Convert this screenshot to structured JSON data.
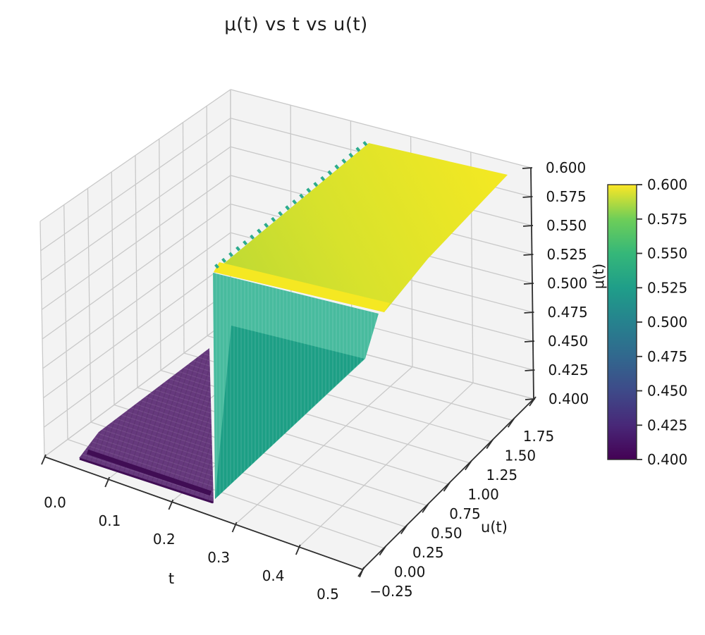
{
  "title": "μ(t) vs t vs u(t)",
  "chart_data": {
    "type": "surface",
    "title": "μ(t) vs t vs u(t)",
    "x_axis": {
      "label": "t",
      "ticks": [
        "0.0",
        "0.1",
        "0.2",
        "0.3",
        "0.4",
        "0.5"
      ],
      "range": [
        0.0,
        0.5
      ]
    },
    "y_axis": {
      "label": "u(t)",
      "ticks": [
        "−0.25",
        "0.00",
        "0.25",
        "0.50",
        "0.75",
        "1.00",
        "1.25",
        "1.50",
        "1.75"
      ],
      "range": [
        -0.25,
        1.75
      ]
    },
    "z_axis": {
      "label": "μ(t)",
      "ticks": [
        "0.400",
        "0.425",
        "0.450",
        "0.475",
        "0.500",
        "0.525",
        "0.550",
        "0.575",
        "0.600"
      ],
      "range": [
        0.4,
        0.6
      ]
    },
    "grid": true,
    "surface": {
      "description": "Step surface: μ(t) = 0.4 (dark purple plane) before the step and μ(t) = 0.6 (yellow plane) after it, joined by a vertical teal wall at the jump (t ≈ 0.25).",
      "low_value": 0.4,
      "high_value": 0.6,
      "step_at_t": 0.25,
      "colormap": "viridis"
    },
    "colorbar": {
      "ticks_bottom_to_top": [
        "0.400",
        "0.425",
        "0.450",
        "0.475",
        "0.500",
        "0.525",
        "0.550",
        "0.575",
        "0.600"
      ],
      "colormap_stops": [
        {
          "pos": 0.0,
          "color": "#440154"
        },
        {
          "pos": 0.125,
          "color": "#482878"
        },
        {
          "pos": 0.25,
          "color": "#3e4a89"
        },
        {
          "pos": 0.375,
          "color": "#31688e"
        },
        {
          "pos": 0.5,
          "color": "#26828e"
        },
        {
          "pos": 0.625,
          "color": "#1f9e89"
        },
        {
          "pos": 0.75,
          "color": "#35b779"
        },
        {
          "pos": 0.875,
          "color": "#6ece58"
        },
        {
          "pos": 1.0,
          "color": "#fde725"
        }
      ]
    },
    "colors": {
      "pane": "#f3f3f3",
      "grid": "#c9c9c9",
      "axis": "#2e2e2e",
      "text": "#141414",
      "surface_low": "#66397d",
      "surface_low_stripe": "#400d54",
      "wall_light": "#48bb9e",
      "wall_dark": "#1d9f85",
      "wall_teeth": "#2dab8d",
      "ledge": "#f5e822",
      "plane_start": "#bcd934",
      "plane_end": "#f2e823"
    },
    "surface_polygons": [
      {
        "name": "surface-low-plane",
        "kind": "poly",
        "fill": "surface_low",
        "points": [
          [
            112,
            650
          ],
          [
            303,
            714
          ],
          [
            297,
            494
          ],
          [
            140,
            613
          ]
        ]
      },
      {
        "name": "surface-low-plane-texture",
        "kind": "poly",
        "fill": "@purpleTex",
        "points": [
          [
            112,
            650
          ],
          [
            303,
            714
          ],
          [
            297,
            494
          ],
          [
            140,
            613
          ]
        ]
      },
      {
        "name": "surface-low-plane-stripe",
        "kind": "line",
        "stroke": "surface_low_stripe",
        "width": 7,
        "points": [
          [
            124,
            641
          ],
          [
            299,
            700
          ]
        ]
      },
      {
        "name": "surface-low-plane-edge",
        "kind": "line",
        "stroke": "surface_low_stripe",
        "width": 3,
        "points": [
          [
            113,
            651
          ],
          [
            302,
            713
          ]
        ]
      },
      {
        "name": "surface-jump-wall",
        "kind": "poly",
        "fill": "wall_light",
        "points": [
          [
            302,
            387
          ],
          [
            537,
            445
          ],
          [
            518,
            509
          ],
          [
            305,
            708
          ]
        ]
      },
      {
        "name": "surface-jump-wall-shadow",
        "kind": "poly",
        "fill": "wall_dark",
        "points": [
          [
            328,
            462
          ],
          [
            517,
            509
          ],
          [
            305,
            708
          ]
        ]
      },
      {
        "name": "surface-jump-wall-texture",
        "kind": "poly",
        "fill": "@wallTex",
        "points": [
          [
            302,
            387
          ],
          [
            537,
            445
          ],
          [
            518,
            509
          ],
          [
            305,
            708
          ]
        ]
      },
      {
        "name": "surface-high-plane",
        "kind": "poly",
        "fill": "@yellowGrad",
        "points": [
          [
            303,
            386
          ],
          [
            523,
            203
          ],
          [
            720,
            248
          ],
          [
            607,
            367
          ],
          [
            545,
            443
          ]
        ]
      },
      {
        "name": "surface-high-plane-ledge",
        "kind": "poly",
        "fill": "ledge",
        "points": [
          [
            303,
            386
          ],
          [
            545,
            443
          ],
          [
            553,
            430
          ],
          [
            311,
            372
          ]
        ]
      },
      {
        "name": "surface-jump-wall-teeth",
        "kind": "line",
        "stroke": "wall_teeth",
        "width": 6,
        "dash": "4 9",
        "points": [
          [
            306,
            379
          ],
          [
            526,
            197
          ]
        ]
      }
    ]
  }
}
